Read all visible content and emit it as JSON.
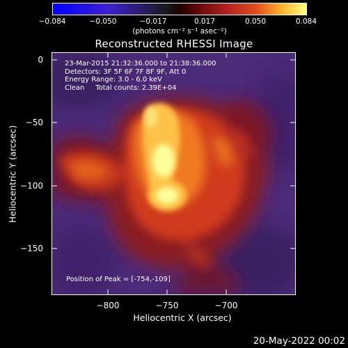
{
  "colorbar": {
    "ticks": [
      "−0.084",
      "−0.050",
      "−0.017",
      "0.017",
      "0.050",
      "0.084"
    ],
    "unit_label": "(photons cm⁻² s⁻¹ asec⁻²)"
  },
  "title": "Reconstructed RHESSI Image",
  "annotations": {
    "time_range": "23-Mar-2015 21:32:36.000 to 21:38:36.000",
    "detectors": "Detectors: 3F 5F 6F 7F 8F 9F, Att 0",
    "energy": "Energy Range: 3.0 - 6.0 keV",
    "clean": "Clean     Total counts: 2.39E+04",
    "peak": "Position of Peak = [-754,-109]"
  },
  "axes": {
    "ylabel": "Heliocentric Y (arcsec)",
    "xlabel": "Heliocentric X (arcsec)",
    "yticks": [
      "0",
      "−50",
      "−100",
      "−150"
    ],
    "xticks": [
      "−800",
      "−750",
      "−700"
    ]
  },
  "footer_date": "20-May-2022 00:02",
  "colors": {
    "background": "#000000",
    "frame": "#ffffff",
    "cold": "#4b2a78",
    "hot": "#ffffa0"
  }
}
